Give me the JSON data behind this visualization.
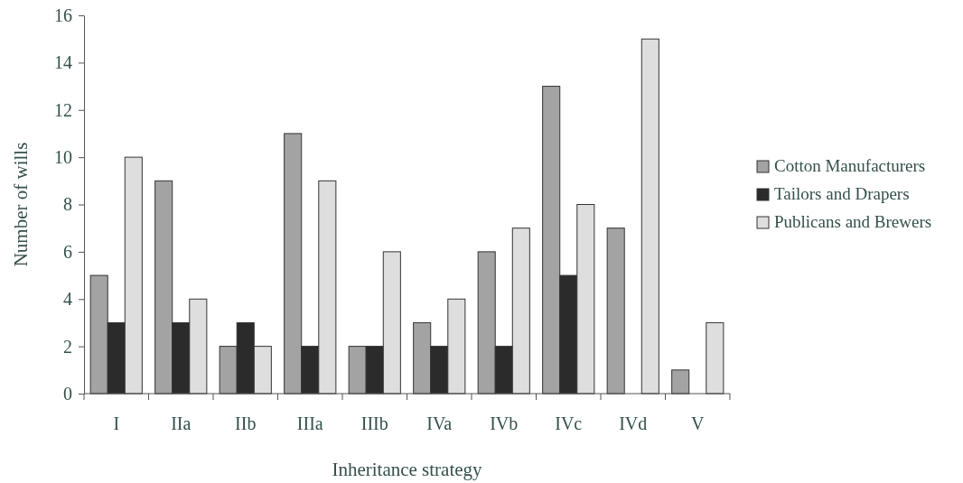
{
  "chart_data": {
    "type": "bar",
    "xlabel": "Inheritance strategy",
    "ylabel": "Number of wills",
    "categories": [
      "I",
      "IIa",
      "IIb",
      "IIIa",
      "IIIb",
      "IVa",
      "IVb",
      "IVc",
      "IVd",
      "V"
    ],
    "series": [
      {
        "name": "Cotton Manufacturers",
        "color": "#a3a3a3",
        "values": [
          5,
          9,
          2,
          11,
          2,
          3,
          6,
          13,
          7,
          1
        ]
      },
      {
        "name": "Tailors and Drapers",
        "color": "#2b2b2b",
        "values": [
          3,
          3,
          3,
          2,
          2,
          2,
          2,
          5,
          0,
          0
        ]
      },
      {
        "name": "Publicans and Brewers",
        "color": "#dedede",
        "values": [
          10,
          4,
          2,
          9,
          6,
          4,
          7,
          8,
          15,
          3
        ]
      }
    ],
    "ylim": [
      0,
      16
    ],
    "yticks": [
      0,
      2,
      4,
      6,
      8,
      10,
      12,
      14,
      16
    ],
    "grid": false,
    "legend": "right"
  }
}
